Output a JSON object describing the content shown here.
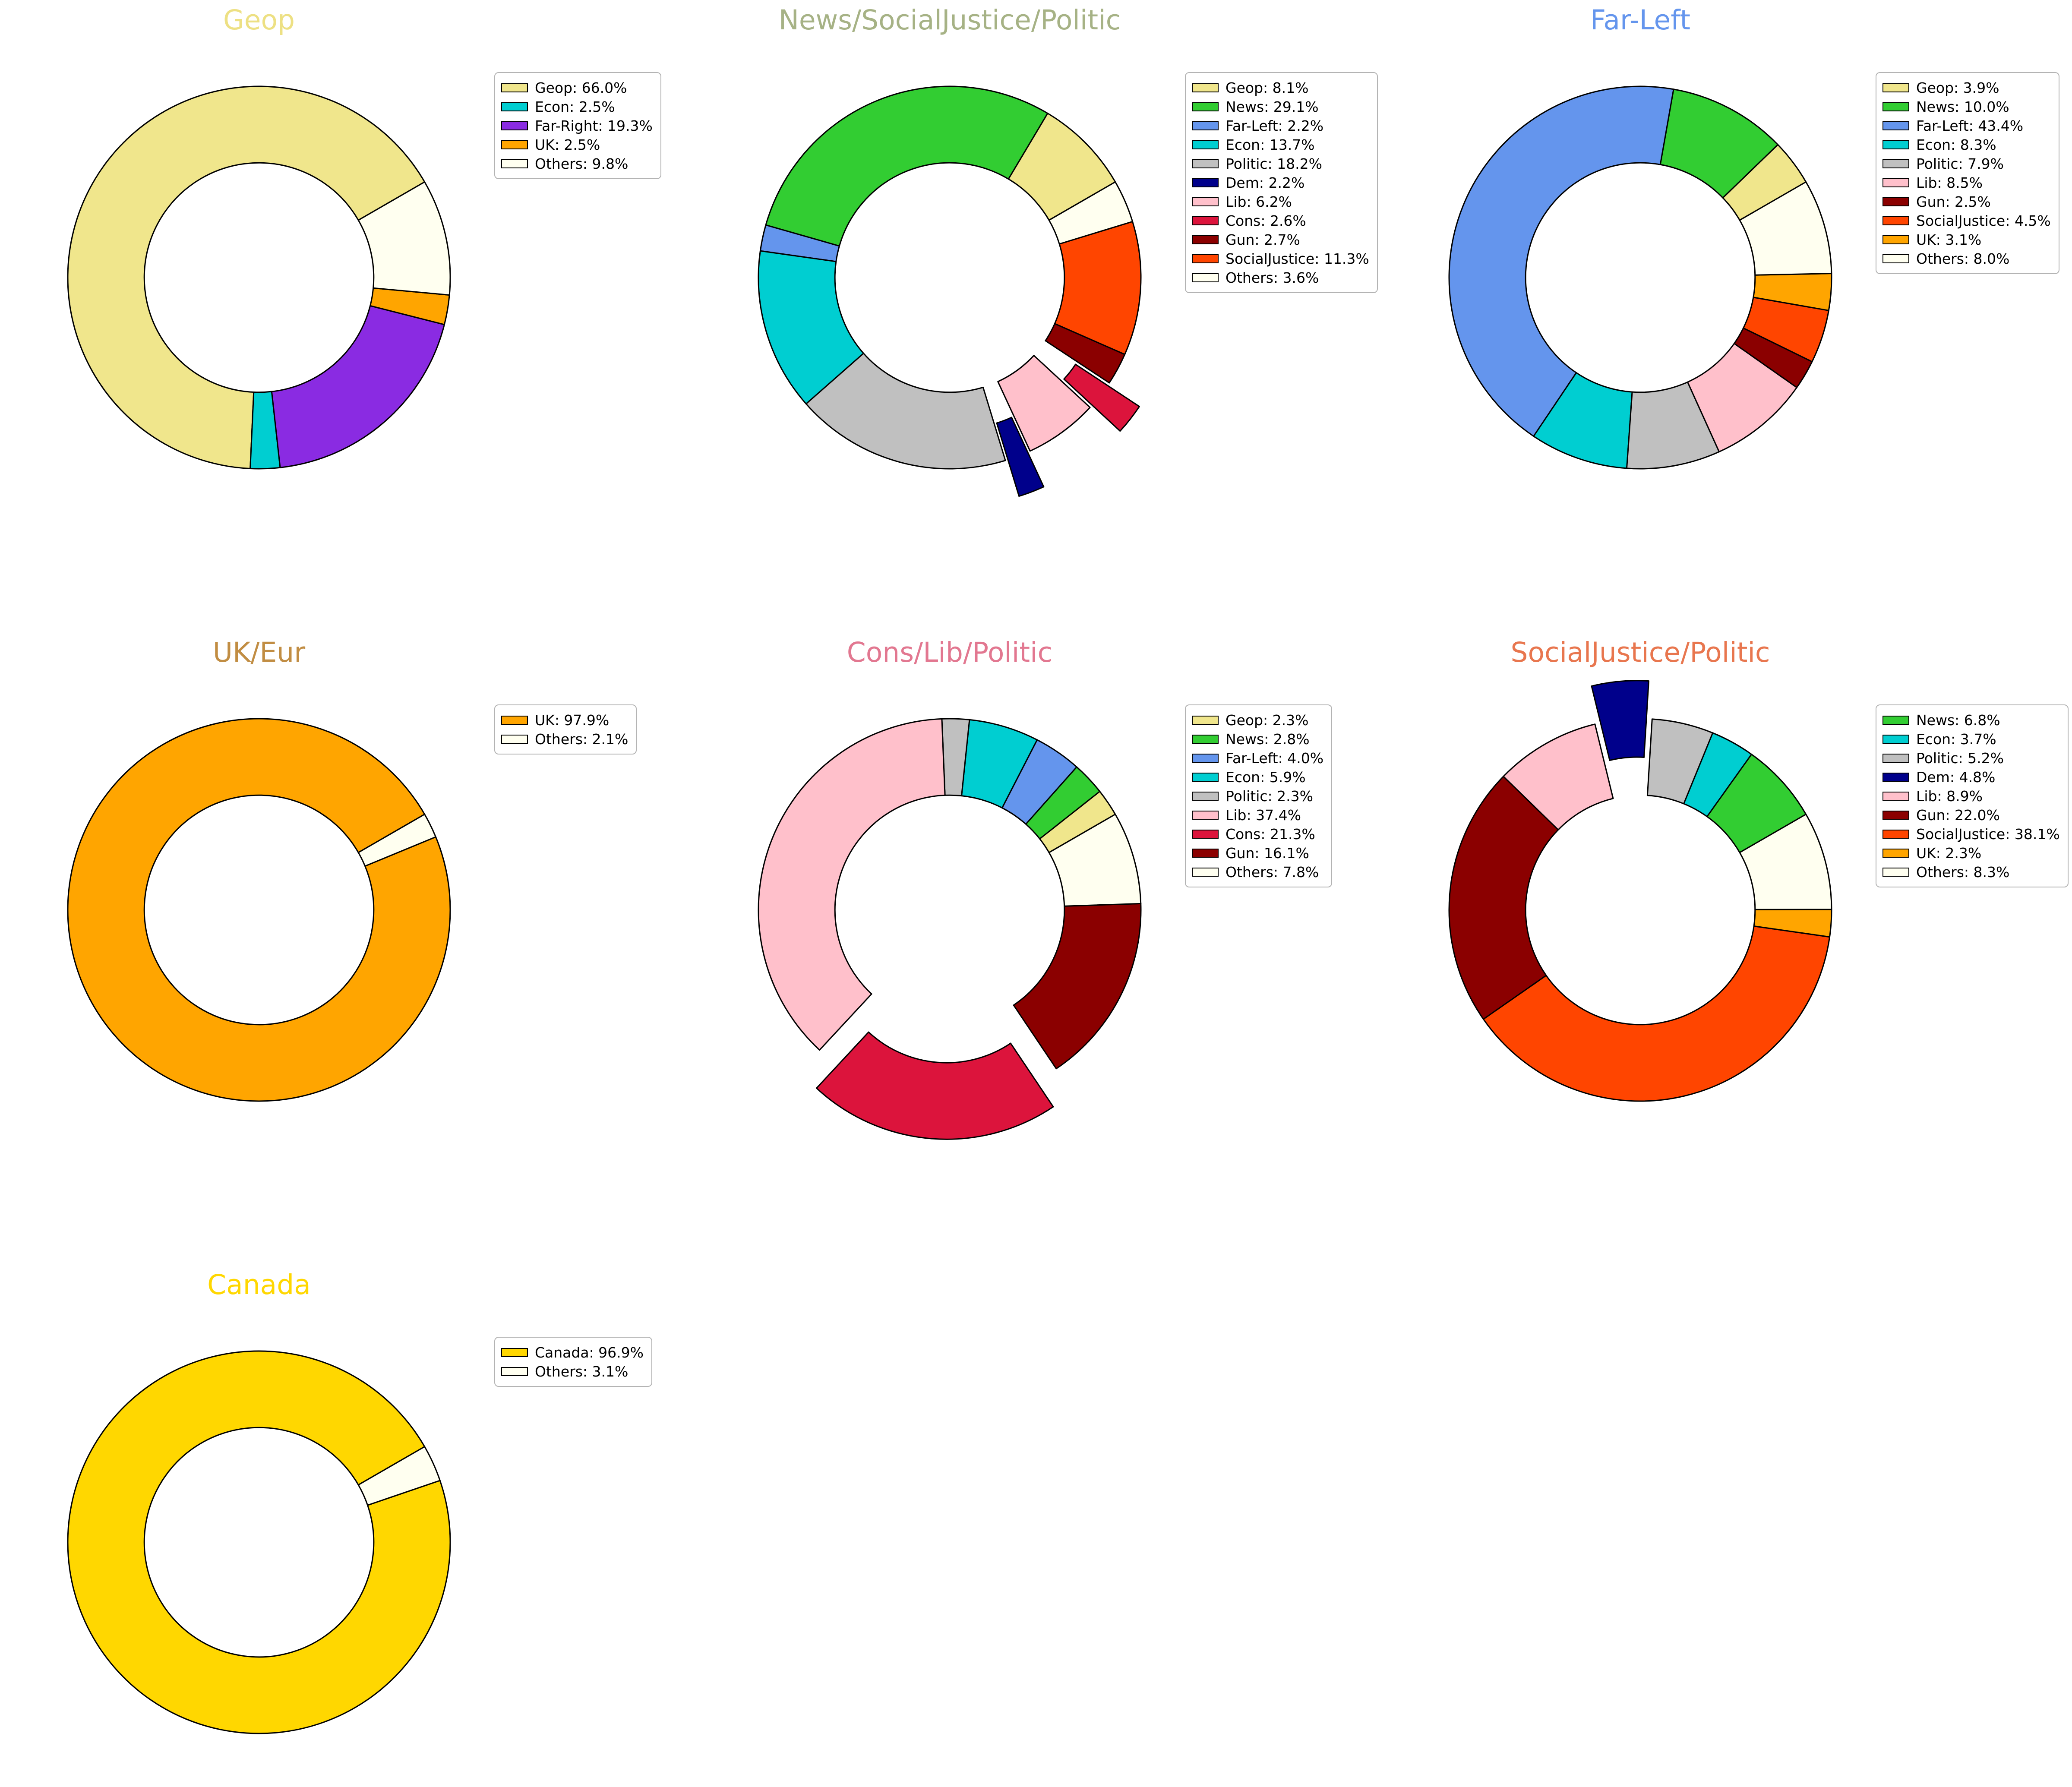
{
  "figure": {
    "background_color": "#ffffff",
    "legend_format": "{label}: {pct}%"
  },
  "palette": {
    "Geop": "#F0E68C",
    "News": "#32CD32",
    "Far-Left": "#6495ED",
    "Far-Right": "#8A2BE2",
    "Econ": "#00CED1",
    "Politic": "#C0C0C0",
    "Dem": "#00008B",
    "Lib": "#FFC0CB",
    "Cons": "#DC143C",
    "Gun": "#8B0000",
    "SocialJustice": "#FF4500",
    "UK": "#FFA500",
    "Canada": "#FFD700",
    "Others": "#FFFFF0"
  },
  "chart_data": [
    {
      "type": "pie",
      "subtype": "donut",
      "title": "Geop",
      "title_color": "#EDE083",
      "grid": {
        "row": 0,
        "col": 0
      },
      "start_angle_deg": 30,
      "direction": "counterclockwise",
      "hole_ratio": 0.6,
      "legend_position": "upper-right",
      "slices": [
        {
          "label": "Geop",
          "pct": 66.0,
          "color": "#F0E68C",
          "exploded": false
        },
        {
          "label": "Econ",
          "pct": 2.5,
          "color": "#00CED1",
          "exploded": false
        },
        {
          "label": "Far-Right",
          "pct": 19.3,
          "color": "#8A2BE2",
          "exploded": false
        },
        {
          "label": "UK",
          "pct": 2.5,
          "color": "#FFA500",
          "exploded": false
        },
        {
          "label": "Others",
          "pct": 9.8,
          "color": "#FFFFF0",
          "exploded": false
        }
      ]
    },
    {
      "type": "pie",
      "subtype": "donut",
      "title": "News/SocialJustice/Politic",
      "title_color": "#A6B285",
      "grid": {
        "row": 0,
        "col": 1
      },
      "start_angle_deg": 30,
      "direction": "counterclockwise",
      "hole_ratio": 0.6,
      "legend_position": "upper-right",
      "slices": [
        {
          "label": "Geop",
          "pct": 8.1,
          "color": "#F0E68C",
          "exploded": false
        },
        {
          "label": "News",
          "pct": 29.1,
          "color": "#32CD32",
          "exploded": false
        },
        {
          "label": "Far-Left",
          "pct": 2.2,
          "color": "#6495ED",
          "exploded": false
        },
        {
          "label": "Econ",
          "pct": 13.7,
          "color": "#00CED1",
          "exploded": false
        },
        {
          "label": "Politic",
          "pct": 18.2,
          "color": "#C0C0C0",
          "exploded": false
        },
        {
          "label": "Dem",
          "pct": 2.2,
          "color": "#00008B",
          "exploded": true
        },
        {
          "label": "Lib",
          "pct": 6.2,
          "color": "#FFC0CB",
          "exploded": false
        },
        {
          "label": "Cons",
          "pct": 2.6,
          "color": "#DC143C",
          "exploded": true
        },
        {
          "label": "Gun",
          "pct": 2.7,
          "color": "#8B0000",
          "exploded": false
        },
        {
          "label": "SocialJustice",
          "pct": 11.3,
          "color": "#FF4500",
          "exploded": false
        },
        {
          "label": "Others",
          "pct": 3.6,
          "color": "#FFFFF0",
          "exploded": false
        }
      ]
    },
    {
      "type": "pie",
      "subtype": "donut",
      "title": "Far-Left",
      "title_color": "#6495ED",
      "grid": {
        "row": 0,
        "col": 2
      },
      "start_angle_deg": 30,
      "direction": "counterclockwise",
      "hole_ratio": 0.6,
      "legend_position": "upper-right",
      "slices": [
        {
          "label": "Geop",
          "pct": 3.9,
          "color": "#F0E68C",
          "exploded": false
        },
        {
          "label": "News",
          "pct": 10.0,
          "color": "#32CD32",
          "exploded": false
        },
        {
          "label": "Far-Left",
          "pct": 43.4,
          "color": "#6495ED",
          "exploded": false
        },
        {
          "label": "Econ",
          "pct": 8.3,
          "color": "#00CED1",
          "exploded": false
        },
        {
          "label": "Politic",
          "pct": 7.9,
          "color": "#C0C0C0",
          "exploded": false
        },
        {
          "label": "Lib",
          "pct": 8.5,
          "color": "#FFC0CB",
          "exploded": false
        },
        {
          "label": "Gun",
          "pct": 2.5,
          "color": "#8B0000",
          "exploded": false
        },
        {
          "label": "SocialJustice",
          "pct": 4.5,
          "color": "#FF4500",
          "exploded": false
        },
        {
          "label": "UK",
          "pct": 3.1,
          "color": "#FFA500",
          "exploded": false
        },
        {
          "label": "Others",
          "pct": 8.0,
          "color": "#FFFFF0",
          "exploded": false
        }
      ]
    },
    {
      "type": "pie",
      "subtype": "donut",
      "title": "UK/Eur",
      "title_color": "#C18D43",
      "grid": {
        "row": 1,
        "col": 0
      },
      "start_angle_deg": 30,
      "direction": "counterclockwise",
      "hole_ratio": 0.6,
      "legend_position": "upper-right",
      "slices": [
        {
          "label": "UK",
          "pct": 97.9,
          "color": "#FFA500",
          "exploded": false
        },
        {
          "label": "Others",
          "pct": 2.1,
          "color": "#FFFFF0",
          "exploded": false
        }
      ]
    },
    {
      "type": "pie",
      "subtype": "donut",
      "title": "Cons/Lib/Politic",
      "title_color": "#E27790",
      "grid": {
        "row": 1,
        "col": 1
      },
      "start_angle_deg": 30,
      "direction": "counterclockwise",
      "hole_ratio": 0.6,
      "legend_position": "upper-right",
      "slices": [
        {
          "label": "Geop",
          "pct": 2.3,
          "color": "#F0E68C",
          "exploded": false
        },
        {
          "label": "News",
          "pct": 2.8,
          "color": "#32CD32",
          "exploded": false
        },
        {
          "label": "Far-Left",
          "pct": 4.0,
          "color": "#6495ED",
          "exploded": false
        },
        {
          "label": "Econ",
          "pct": 5.9,
          "color": "#00CED1",
          "exploded": false
        },
        {
          "label": "Politic",
          "pct": 2.3,
          "color": "#C0C0C0",
          "exploded": false
        },
        {
          "label": "Lib",
          "pct": 37.4,
          "color": "#FFC0CB",
          "exploded": false
        },
        {
          "label": "Cons",
          "pct": 21.3,
          "color": "#DC143C",
          "exploded": true
        },
        {
          "label": "Gun",
          "pct": 16.1,
          "color": "#8B0000",
          "exploded": false
        },
        {
          "label": "Others",
          "pct": 7.8,
          "color": "#FFFFF0",
          "exploded": false
        }
      ]
    },
    {
      "type": "pie",
      "subtype": "donut",
      "title": "SocialJustice/Politic",
      "title_color": "#E8764E",
      "grid": {
        "row": 1,
        "col": 2
      },
      "start_angle_deg": 30,
      "direction": "counterclockwise",
      "hole_ratio": 0.6,
      "legend_position": "upper-right",
      "slices": [
        {
          "label": "News",
          "pct": 6.8,
          "color": "#32CD32",
          "exploded": false
        },
        {
          "label": "Econ",
          "pct": 3.7,
          "color": "#00CED1",
          "exploded": false
        },
        {
          "label": "Politic",
          "pct": 5.2,
          "color": "#C0C0C0",
          "exploded": false
        },
        {
          "label": "Dem",
          "pct": 4.8,
          "color": "#00008B",
          "exploded": true
        },
        {
          "label": "Lib",
          "pct": 8.9,
          "color": "#FFC0CB",
          "exploded": false
        },
        {
          "label": "Gun",
          "pct": 22.0,
          "color": "#8B0000",
          "exploded": false
        },
        {
          "label": "SocialJustice",
          "pct": 38.1,
          "color": "#FF4500",
          "exploded": false
        },
        {
          "label": "UK",
          "pct": 2.3,
          "color": "#FFA500",
          "exploded": false
        },
        {
          "label": "Others",
          "pct": 8.3,
          "color": "#FFFFF0",
          "exploded": false
        }
      ]
    },
    {
      "type": "pie",
      "subtype": "donut",
      "title": "Canada",
      "title_color": "#FFD700",
      "grid": {
        "row": 2,
        "col": 0
      },
      "start_angle_deg": 30,
      "direction": "counterclockwise",
      "hole_ratio": 0.6,
      "legend_position": "upper-right",
      "slices": [
        {
          "label": "Canada",
          "pct": 96.9,
          "color": "#FFD700",
          "exploded": false
        },
        {
          "label": "Others",
          "pct": 3.1,
          "color": "#FFFFF0",
          "exploded": false
        }
      ]
    }
  ]
}
